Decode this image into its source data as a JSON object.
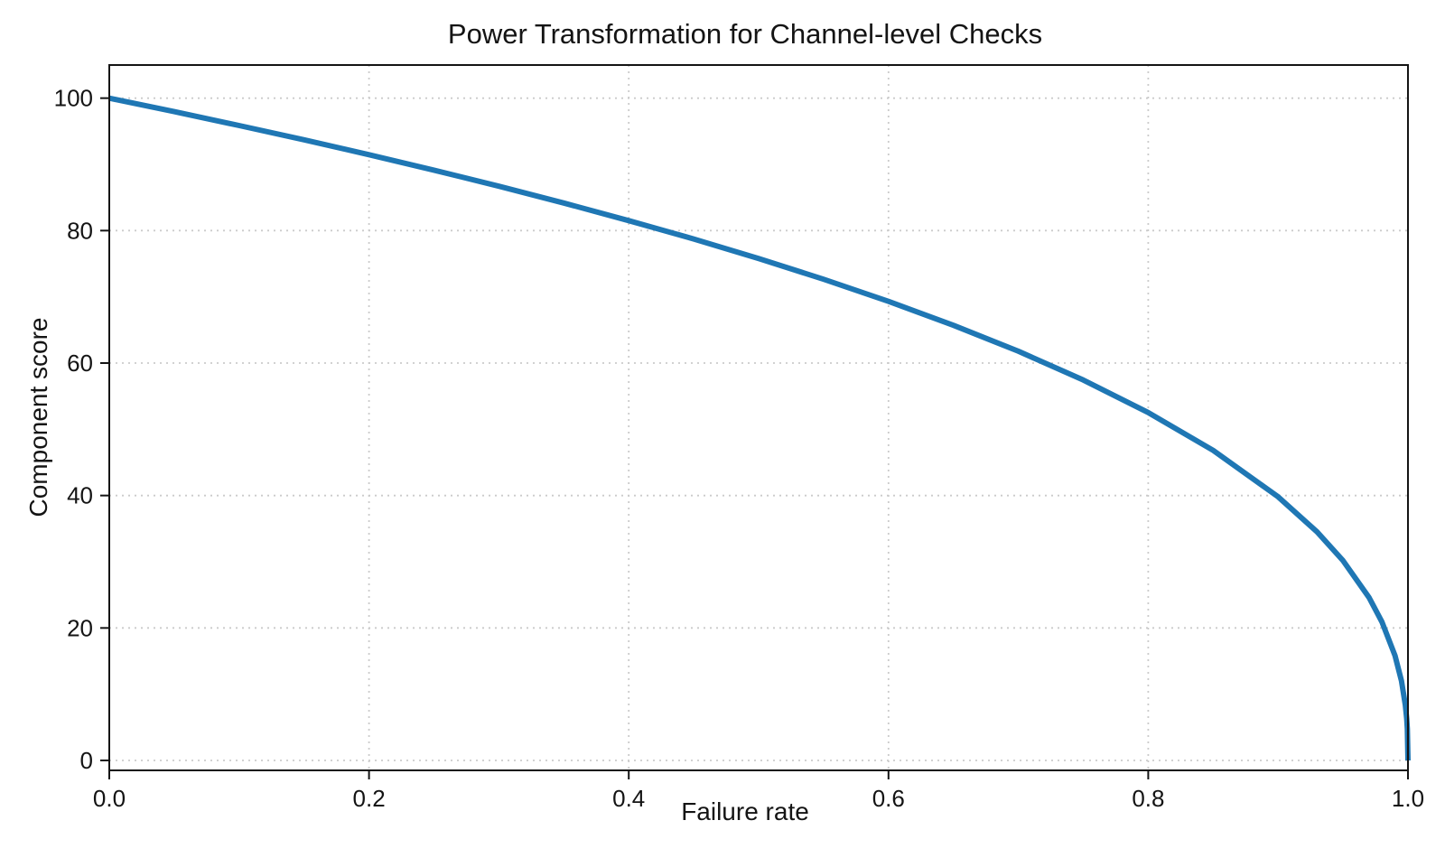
{
  "page": {
    "background": "#ffffff"
  },
  "chart_data": {
    "type": "line",
    "title": "Power Transformation for Channel-level Checks",
    "xlabel": "Failure rate",
    "ylabel": "Component score",
    "xlim": [
      0.0,
      1.0
    ],
    "ylim": [
      -1.5,
      105
    ],
    "x_ticks": [
      0.0,
      0.2,
      0.4,
      0.6,
      0.8,
      1.0
    ],
    "x_tick_labels": [
      "0.0",
      "0.2",
      "0.4",
      "0.6",
      "0.8",
      "1.0"
    ],
    "y_ticks": [
      0,
      20,
      40,
      60,
      80,
      100
    ],
    "y_tick_labels": [
      "0",
      "20",
      "40",
      "60",
      "80",
      "100"
    ],
    "grid": "dotted",
    "grid_color": "#cbcbcb",
    "legend": "none",
    "series": [
      {
        "name": "component-score-vs-failure-rate",
        "color": "#1f77b4",
        "line_width": 6,
        "formula_estimate": "score = 100 * (1 - failure_rate)^0.4",
        "points": [
          [
            0.0,
            100.0
          ],
          [
            0.05,
            97.97
          ],
          [
            0.1,
            95.87
          ],
          [
            0.15,
            93.71
          ],
          [
            0.2,
            91.46
          ],
          [
            0.25,
            89.13
          ],
          [
            0.3,
            86.7
          ],
          [
            0.35,
            84.17
          ],
          [
            0.4,
            81.51
          ],
          [
            0.45,
            78.73
          ],
          [
            0.5,
            75.79
          ],
          [
            0.55,
            72.66
          ],
          [
            0.6,
            69.31
          ],
          [
            0.65,
            65.7
          ],
          [
            0.7,
            61.78
          ],
          [
            0.75,
            57.43
          ],
          [
            0.8,
            52.53
          ],
          [
            0.85,
            46.82
          ],
          [
            0.9,
            39.81
          ],
          [
            0.93,
            34.52
          ],
          [
            0.95,
            30.17
          ],
          [
            0.97,
            24.6
          ],
          [
            0.98,
            20.91
          ],
          [
            0.99,
            15.85
          ],
          [
            0.995,
            12.01
          ],
          [
            0.998,
            8.33
          ],
          [
            0.999,
            6.31
          ],
          [
            0.9995,
            4.78
          ],
          [
            1.0,
            0.0
          ]
        ]
      }
    ]
  }
}
